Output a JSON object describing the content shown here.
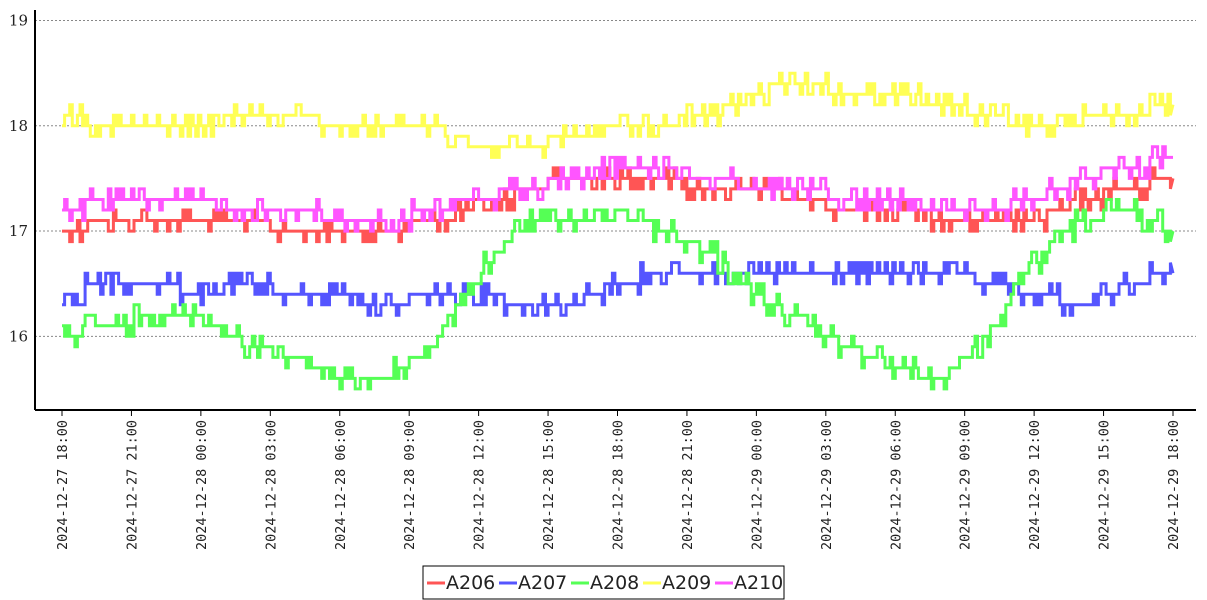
{
  "chart_data": {
    "type": "line",
    "title": "",
    "xlabel": "",
    "ylabel": "",
    "ylim": [
      15.3,
      19.1
    ],
    "y_ticks": [
      16,
      17,
      18,
      19
    ],
    "y_tick_labels": [
      "16",
      "17",
      "18",
      "19"
    ],
    "x_range": [
      "2024-12-27 18:00",
      "2024-12-29 18:00"
    ],
    "x_tick_labels": [
      "2024-12-27 18:00",
      "2024-12-27 21:00",
      "2024-12-28 00:00",
      "2024-12-28 03:00",
      "2024-12-28 06:00",
      "2024-12-28 09:00",
      "2024-12-28 12:00",
      "2024-12-28 15:00",
      "2024-12-28 18:00",
      "2024-12-28 21:00",
      "2024-12-29 00:00",
      "2024-12-29 03:00",
      "2024-12-29 06:00",
      "2024-12-29 09:00",
      "2024-12-29 12:00",
      "2024-12-29 15:00",
      "2024-12-29 18:00"
    ],
    "grid": "horizontal-dotted",
    "legend_position": "bottom-center",
    "x": [
      "2024-12-27 18:00",
      "2024-12-27 20:00",
      "2024-12-27 22:00",
      "2024-12-28 00:00",
      "2024-12-28 02:00",
      "2024-12-28 04:00",
      "2024-12-28 06:00",
      "2024-12-28 08:00",
      "2024-12-28 10:00",
      "2024-12-28 12:00",
      "2024-12-28 14:00",
      "2024-12-28 16:00",
      "2024-12-28 18:00",
      "2024-12-28 20:00",
      "2024-12-28 22:00",
      "2024-12-29 00:00",
      "2024-12-29 02:00",
      "2024-12-29 04:00",
      "2024-12-29 06:00",
      "2024-12-29 08:00",
      "2024-12-29 10:00",
      "2024-12-29 12:00",
      "2024-12-29 14:00",
      "2024-12-29 16:00",
      "2024-12-29 18:00"
    ],
    "series": [
      {
        "name": "A206",
        "color": "#ff5555",
        "values": [
          17.0,
          17.1,
          17.1,
          17.1,
          17.1,
          17.0,
          17.0,
          17.0,
          17.1,
          17.2,
          17.4,
          17.5,
          17.5,
          17.5,
          17.4,
          17.4,
          17.3,
          17.2,
          17.2,
          17.1,
          17.1,
          17.1,
          17.3,
          17.4,
          17.5
        ]
      },
      {
        "name": "A207",
        "color": "#5555ff",
        "values": [
          16.4,
          16.5,
          16.5,
          16.4,
          16.5,
          16.4,
          16.4,
          16.3,
          16.4,
          16.4,
          16.3,
          16.3,
          16.5,
          16.6,
          16.6,
          16.6,
          16.6,
          16.6,
          16.6,
          16.6,
          16.5,
          16.4,
          16.3,
          16.5,
          16.6
        ]
      },
      {
        "name": "A208",
        "color": "#55ff55",
        "values": [
          16.0,
          16.1,
          16.2,
          16.2,
          15.9,
          15.8,
          15.6,
          15.6,
          15.9,
          16.6,
          17.1,
          17.1,
          17.2,
          17.0,
          16.8,
          16.4,
          16.1,
          15.9,
          15.7,
          15.6,
          16.0,
          16.7,
          17.1,
          17.2,
          17.0
        ]
      },
      {
        "name": "A209",
        "color": "#ffff55",
        "values": [
          18.1,
          18.0,
          18.0,
          18.0,
          18.1,
          18.1,
          18.0,
          18.0,
          18.0,
          17.8,
          17.8,
          17.9,
          18.0,
          18.0,
          18.1,
          18.3,
          18.4,
          18.3,
          18.3,
          18.2,
          18.1,
          18.0,
          18.1,
          18.1,
          18.2
        ]
      },
      {
        "name": "A210",
        "color": "#ff55ff",
        "values": [
          17.2,
          17.3,
          17.3,
          17.3,
          17.2,
          17.2,
          17.1,
          17.1,
          17.2,
          17.3,
          17.4,
          17.5,
          17.6,
          17.6,
          17.5,
          17.4,
          17.4,
          17.3,
          17.3,
          17.2,
          17.2,
          17.3,
          17.5,
          17.6,
          17.7
        ]
      }
    ]
  }
}
